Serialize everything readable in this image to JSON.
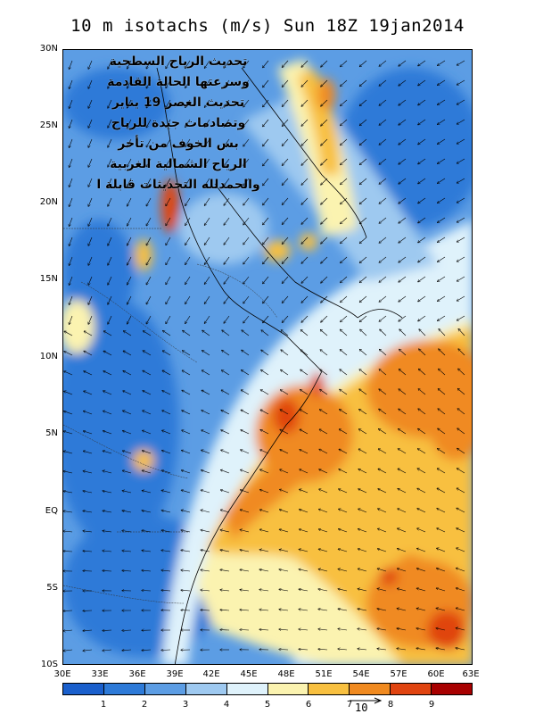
{
  "title": "10 m isotachs (m/s) Sun 18Z 19jan2014",
  "y_axis_labels": [
    "30N",
    "25N",
    "20N",
    "15N",
    "10N",
    "5N",
    "EQ",
    "5S",
    "10S"
  ],
  "x_axis_labels": [
    "30E",
    "33E",
    "36E",
    "39E",
    "42E",
    "45E",
    "48E",
    "51E",
    "54E",
    "57E",
    "60E",
    "63E"
  ],
  "colorbar": {
    "colors": [
      "#1a5fcc",
      "#2d7ad8",
      "#5c9de4",
      "#9ec9f0",
      "#dff2fb",
      "#fbf3b0",
      "#f8c040",
      "#f08a20",
      "#e04410",
      "#a80000"
    ],
    "labels": [
      "1",
      "2",
      "3",
      "4",
      "5",
      "6",
      "7",
      "8",
      "9"
    ]
  },
  "reference_vector": {
    "label": "10"
  },
  "annotation": {
    "lines": [
      "تحديث الرياح السطحية",
      "وسرعتها الحالة القادمة",
      "تحديث العصر 19 يناير",
      "وتصادمات جيدة للرياح",
      "بس الخوف من تأخر",
      "الرياح الشمالية الغربية",
      "والحمدلله التحديثات قابلة ا"
    ]
  },
  "map": {
    "region": "Horn of Africa, Arabian Peninsula, Arabian Sea",
    "lon_range": [
      30,
      63
    ],
    "lat_range": [
      -10,
      30
    ],
    "field": "10 m wind speed (m/s)"
  }
}
